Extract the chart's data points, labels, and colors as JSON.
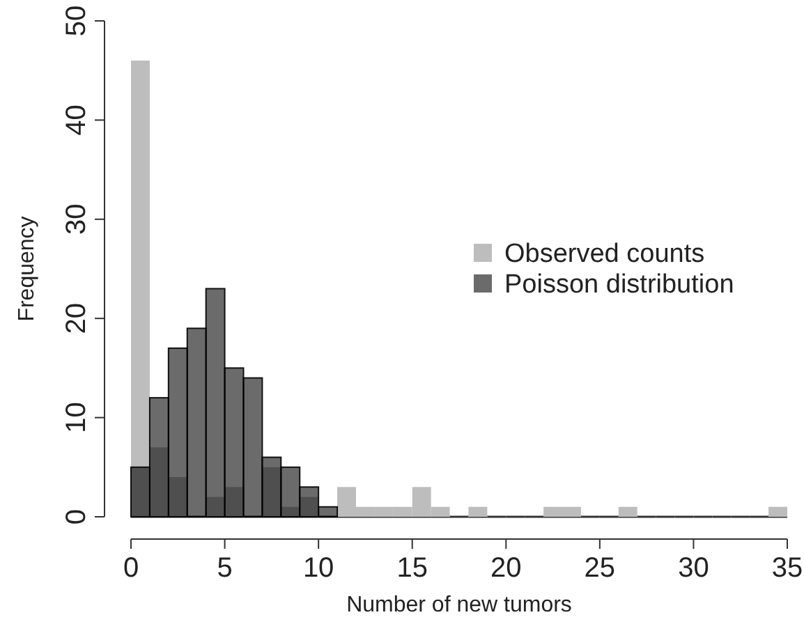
{
  "chart_data": {
    "type": "histogram",
    "xlabel": "Number of new tumors",
    "ylabel": "Frequency",
    "bins": [
      0,
      1,
      2,
      3,
      4,
      5,
      6,
      7,
      8,
      9,
      10,
      11,
      12,
      13,
      14,
      15,
      16,
      17,
      18,
      19,
      20,
      21,
      22,
      23,
      24,
      25,
      26,
      27,
      28,
      29,
      30,
      31,
      32,
      33,
      34,
      35
    ],
    "series": [
      {
        "name": "Observed counts",
        "color": "#bdbdbd",
        "values": [
          46,
          7,
          4,
          0,
          2,
          3,
          0,
          5,
          1,
          2,
          0,
          3,
          1,
          1,
          1,
          3,
          1,
          0,
          1,
          0,
          0,
          0,
          1,
          1,
          0,
          0,
          1,
          0,
          0,
          0,
          0,
          0,
          0,
          0,
          1
        ]
      },
      {
        "name": "Poisson distribution",
        "color": "#6b6b6b",
        "values": [
          5,
          12,
          17,
          19,
          23,
          15,
          14,
          6,
          5,
          3,
          1,
          null,
          null,
          null,
          null,
          null,
          null,
          null,
          null,
          null,
          null,
          null,
          null,
          null,
          null,
          null,
          null,
          null,
          null,
          null,
          null,
          null,
          null,
          null,
          null
        ]
      }
    ],
    "xlim": [
      0,
      35
    ],
    "xticks": [
      0,
      5,
      10,
      15,
      20,
      25,
      30,
      35
    ],
    "ylim": [
      0,
      50
    ],
    "yticks": [
      0,
      10,
      20,
      30,
      40,
      50
    ],
    "legend": "right",
    "grid": false
  }
}
